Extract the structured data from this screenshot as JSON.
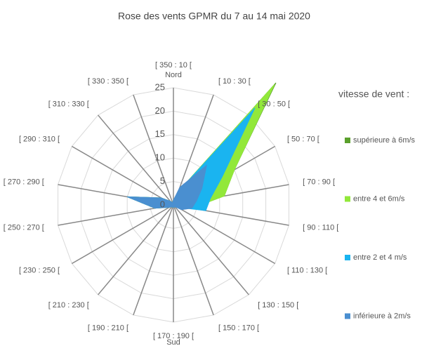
{
  "chart_data": {
    "type": "radar",
    "title": "Rose des vents GPMR du 7 au 14 mai 2020",
    "categories": [
      "[ 350 : 10 [",
      "[ 10 : 30 [",
      "[ 30 : 50 [",
      "[ 50 : 70 [",
      "[ 70 : 90 [",
      "[ 90 : 110 [",
      "[ 110 : 130 [",
      "[ 130 : 150 [",
      "[ 150 : 170 [",
      "[ 170 : 190 [",
      "[ 190 : 210 [",
      "[ 210 : 230 [",
      "[ 230 : 250 [",
      "[ 250 : 270 [",
      "[ 270 : 290 [",
      "[ 290 : 310 [",
      "[ 310 : 330 [",
      "[ 330 : 350 ["
    ],
    "annotations": [
      "Nord",
      "Sud"
    ],
    "legend_title": "vitesse de vent :",
    "ylim": [
      0,
      25
    ],
    "yticks": [
      0,
      5,
      10,
      15,
      20,
      25
    ],
    "grid": true,
    "legend": "right",
    "series": [
      {
        "name": "supérieure à 6m/s",
        "color": "#5aa02c",
        "values": [
          1,
          3,
          34,
          15,
          11,
          4,
          1,
          0.5,
          0.5,
          0.5,
          0.5,
          0.5,
          1,
          4,
          10,
          3,
          1,
          0.5
        ]
      },
      {
        "name": "entre 4 et 6m/s",
        "color": "#92e83a",
        "values": [
          1,
          3,
          33.5,
          15,
          11,
          4,
          1,
          0.5,
          0.5,
          0.5,
          0.5,
          0.5,
          1,
          4,
          10,
          3,
          1,
          0.5
        ]
      },
      {
        "name": "entre 2 et 4 m/s",
        "color": "#1ab4f0",
        "values": [
          1,
          3,
          27,
          12,
          8,
          7,
          1,
          0.5,
          0.5,
          0.5,
          0.5,
          0.5,
          1,
          4,
          10,
          3,
          1,
          0.5
        ]
      },
      {
        "name": "inférieure à 2m/s",
        "color": "#4a8fd0",
        "values": [
          1,
          4,
          11,
          7,
          5,
          4,
          2,
          0.5,
          0.5,
          0.5,
          0.5,
          0.5,
          1,
          4,
          10,
          3,
          1,
          0.5
        ]
      }
    ]
  }
}
